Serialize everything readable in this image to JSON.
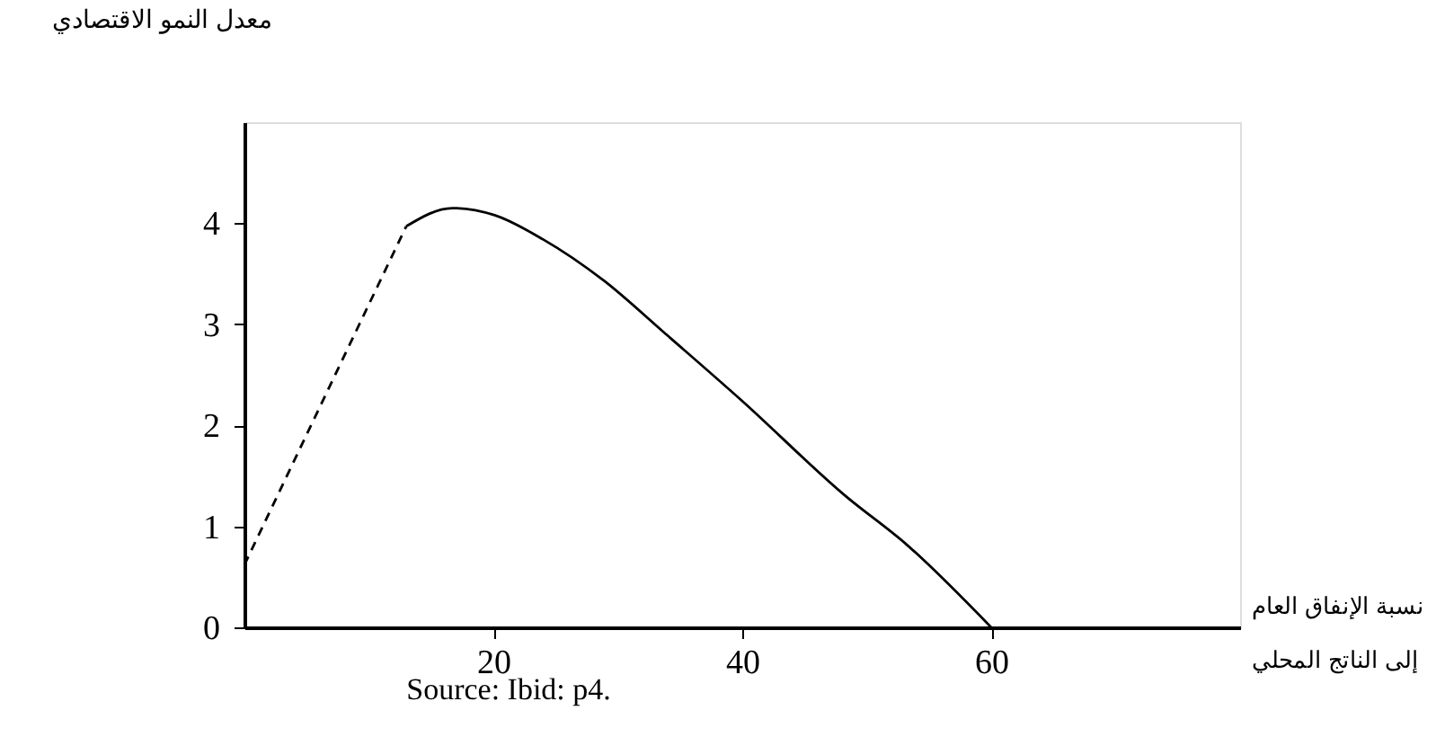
{
  "chart_data": {
    "type": "line",
    "xlabel": "نسبة الإنفاق العام إلى الناتج المحلي",
    "ylabel": "معدل النمو الاقتصادي",
    "annotations": [
      "Source: Ibid: p4."
    ],
    "series": [
      {
        "color": "#000000",
        "line_style": "dashed",
        "x": [
          0,
          13
        ],
        "values": [
          0.62,
          3.97
        ]
      },
      {
        "color": "#000000",
        "line_style": "solid",
        "x": [
          13,
          16.7,
          20.1,
          24,
          28.9,
          33.7,
          40,
          48.3,
          53.2,
          60
        ],
        "values": [
          3.97,
          4.15,
          4.08,
          3.84,
          3.43,
          2.92,
          2.24,
          1.3,
          0.82,
          0
        ]
      }
    ],
    "xlim": [
      0,
      80
    ],
    "ylim": [
      0,
      5
    ],
    "xticks": [
      20,
      40,
      60
    ],
    "yticks": [
      0,
      1,
      2,
      3,
      4
    ],
    "grid": false,
    "marker": "none"
  }
}
